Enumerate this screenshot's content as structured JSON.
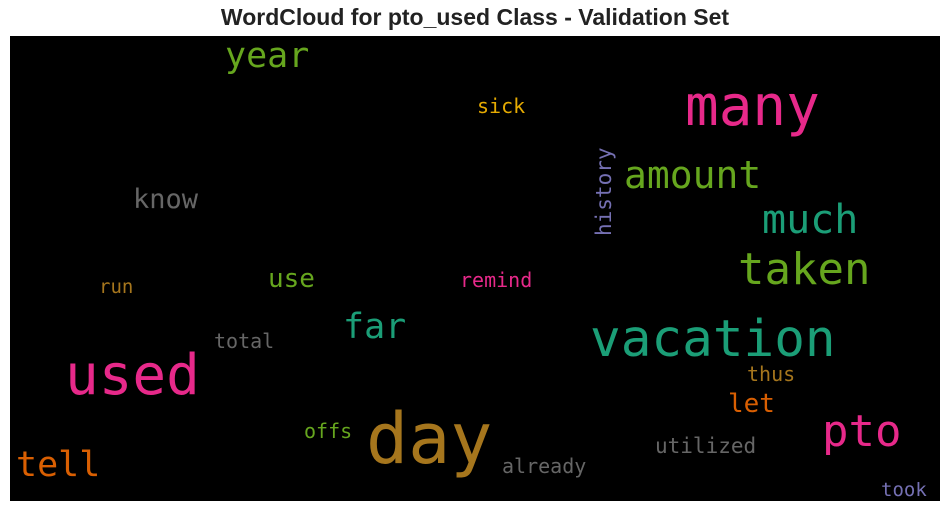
{
  "chart_data": {
    "type": "wordcloud",
    "title": "WordCloud for pto_used Class - Validation Set",
    "background": "#000000",
    "words": [
      {
        "text": "many",
        "color": "#e7298a",
        "weight": 10
      },
      {
        "text": "day",
        "color": "#a6761d",
        "weight": 10
      },
      {
        "text": "used",
        "color": "#e7298a",
        "weight": 9
      },
      {
        "text": "vacation",
        "color": "#1b9e77",
        "weight": 8
      },
      {
        "text": "taken",
        "color": "#66a61e",
        "weight": 7
      },
      {
        "text": "pto",
        "color": "#e7298a",
        "weight": 7
      },
      {
        "text": "much",
        "color": "#1b9e77",
        "weight": 6
      },
      {
        "text": "amount",
        "color": "#66a61e",
        "weight": 6
      },
      {
        "text": "year",
        "color": "#66a61e",
        "weight": 5
      },
      {
        "text": "far",
        "color": "#1b9e77",
        "weight": 5
      },
      {
        "text": "tell",
        "color": "#d95f02",
        "weight": 5
      },
      {
        "text": "know",
        "color": "#666666",
        "weight": 4
      },
      {
        "text": "use",
        "color": "#66a61e",
        "weight": 4
      },
      {
        "text": "let",
        "color": "#d95f02",
        "weight": 4
      },
      {
        "text": "history",
        "color": "#7570b3",
        "weight": 3
      },
      {
        "text": "utilized",
        "color": "#666666",
        "weight": 3
      },
      {
        "text": "already",
        "color": "#666666",
        "weight": 3
      },
      {
        "text": "took",
        "color": "#7570b3",
        "weight": 3
      },
      {
        "text": "sick",
        "color": "#e6ab02",
        "weight": 3
      },
      {
        "text": "remind",
        "color": "#e7298a",
        "weight": 3
      },
      {
        "text": "total",
        "color": "#666666",
        "weight": 3
      },
      {
        "text": "offs",
        "color": "#66a61e",
        "weight": 3
      },
      {
        "text": "thus",
        "color": "#a6761d",
        "weight": 3
      },
      {
        "text": "run",
        "color": "#a6761d",
        "weight": 3
      }
    ]
  }
}
